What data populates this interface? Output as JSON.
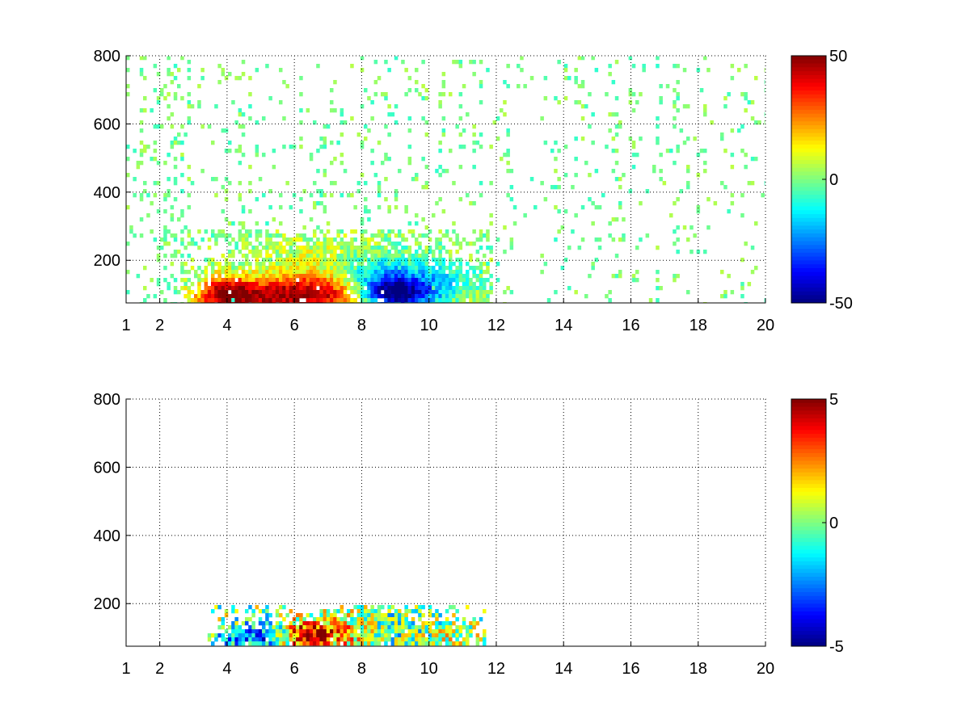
{
  "chart_data": [
    {
      "type": "heatmap",
      "title": "",
      "xlabel": "",
      "ylabel": "",
      "xlim": [
        1,
        20
      ],
      "ylim": [
        75,
        800
      ],
      "xticks": [
        1,
        2,
        4,
        6,
        8,
        10,
        12,
        14,
        16,
        18,
        20
      ],
      "xtick_labels": [
        "1",
        "2",
        "4",
        "6",
        "8",
        "10",
        "12",
        "14",
        "16",
        "18",
        "20"
      ],
      "yticks": [
        200,
        400,
        600,
        800
      ],
      "ytick_labels": [
        "200",
        "400",
        "600",
        "800"
      ],
      "grid": true,
      "colormap": "jet",
      "colorbar": {
        "min": -50,
        "max": 50,
        "ticks": [
          50,
          0,
          -50
        ],
        "tick_labels": [
          "50",
          "0",
          "-50"
        ]
      },
      "blobs": [
        {
          "x": 5.0,
          "y": 100,
          "sx": 1.3,
          "sy": 35,
          "v": 40
        },
        {
          "x": 3.9,
          "y": 110,
          "sx": 0.5,
          "sy": 40,
          "v": 28
        },
        {
          "x": 6.8,
          "y": 110,
          "sx": 0.9,
          "sy": 40,
          "v": 30
        },
        {
          "x": 8.9,
          "y": 110,
          "sx": 0.6,
          "sy": 30,
          "v": -48
        },
        {
          "x": 8.4,
          "y": 160,
          "sx": 1.1,
          "sy": 45,
          "v": -22
        },
        {
          "x": 10.3,
          "y": 120,
          "sx": 0.8,
          "sy": 40,
          "v": -18
        },
        {
          "x": 11.0,
          "y": 100,
          "sx": 0.5,
          "sy": 30,
          "v": 12
        },
        {
          "x": 7.0,
          "y": 200,
          "sx": 1.5,
          "sy": 60,
          "v": 10
        }
      ],
      "cluster_region": {
        "x": [
          2.6,
          11.8
        ],
        "y": [
          75,
          300
        ]
      },
      "background_fill": 0.18,
      "background_values": [
        -8,
        6
      ]
    },
    {
      "type": "heatmap",
      "title": "",
      "xlabel": "",
      "ylabel": "",
      "xlim": [
        1,
        20
      ],
      "ylim": [
        75,
        800
      ],
      "xticks": [
        1,
        2,
        4,
        6,
        8,
        10,
        12,
        14,
        16,
        18,
        20
      ],
      "xtick_labels": [
        "1",
        "2",
        "4",
        "6",
        "8",
        "10",
        "12",
        "14",
        "16",
        "18",
        "20"
      ],
      "yticks": [
        200,
        400,
        600,
        800
      ],
      "ytick_labels": [
        "200",
        "400",
        "600",
        "800"
      ],
      "grid": true,
      "colormap": "jet",
      "colorbar": {
        "min": -5,
        "max": 5,
        "ticks": [
          5,
          0,
          -5
        ],
        "tick_labels": [
          "5",
          "0",
          "-5"
        ]
      },
      "blobs": [
        {
          "x": 4.8,
          "y": 110,
          "sx": 0.8,
          "sy": 25,
          "v": -3
        },
        {
          "x": 6.3,
          "y": 110,
          "sx": 0.5,
          "sy": 30,
          "v": 4.5
        },
        {
          "x": 7.5,
          "y": 120,
          "sx": 0.8,
          "sy": 35,
          "v": 2
        },
        {
          "x": 8.7,
          "y": 130,
          "sx": 0.8,
          "sy": 40,
          "v": -1
        },
        {
          "x": 10.3,
          "y": 110,
          "sx": 0.7,
          "sy": 25,
          "v": 0.5
        }
      ],
      "cluster_region": {
        "x": [
          3.4,
          11.6
        ],
        "y": [
          80,
          200
        ]
      },
      "background_fill": 0.0,
      "background_values": [
        -1,
        1
      ]
    }
  ]
}
